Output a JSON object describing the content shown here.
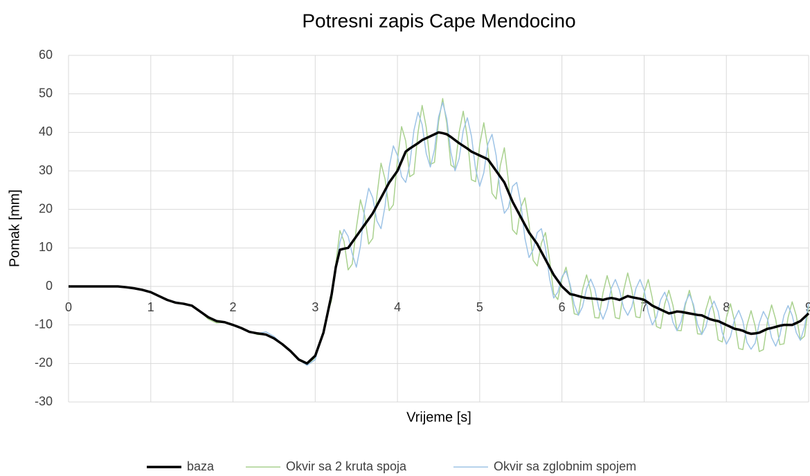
{
  "chart_data": {
    "type": "line",
    "title": "Potresni zapis Cape Mendocino",
    "xlabel": "Vrijeme [s]",
    "ylabel": "Pomak [mm]",
    "xlim": [
      0,
      9
    ],
    "ylim": [
      -30,
      60
    ],
    "xticks": [
      0,
      1,
      2,
      3,
      4,
      5,
      6,
      7,
      8,
      9
    ],
    "yticks": [
      -30,
      -20,
      -10,
      0,
      10,
      20,
      30,
      40,
      50,
      60
    ],
    "grid": true,
    "legend": "bottom",
    "x": [
      0,
      0.1,
      0.2,
      0.3,
      0.4,
      0.5,
      0.6,
      0.7,
      0.8,
      0.9,
      1,
      1.1,
      1.2,
      1.3,
      1.4,
      1.5,
      1.6,
      1.7,
      1.8,
      1.9,
      2,
      2.1,
      2.2,
      2.3,
      2.4,
      2.5,
      2.6,
      2.7,
      2.8,
      2.9,
      3,
      3.05,
      3.1,
      3.15,
      3.2,
      3.25,
      3.3,
      3.35,
      3.4,
      3.45,
      3.5,
      3.55,
      3.6,
      3.65,
      3.7,
      3.75,
      3.8,
      3.85,
      3.9,
      3.95,
      4,
      4.05,
      4.1,
      4.15,
      4.2,
      4.25,
      4.3,
      4.35,
      4.4,
      4.45,
      4.5,
      4.55,
      4.6,
      4.65,
      4.7,
      4.75,
      4.8,
      4.85,
      4.9,
      4.95,
      5,
      5.05,
      5.1,
      5.15,
      5.2,
      5.25,
      5.3,
      5.35,
      5.4,
      5.45,
      5.5,
      5.55,
      5.6,
      5.65,
      5.7,
      5.75,
      5.8,
      5.85,
      5.9,
      5.95,
      6,
      6.05,
      6.1,
      6.15,
      6.2,
      6.25,
      6.3,
      6.35,
      6.4,
      6.45,
      6.5,
      6.55,
      6.6,
      6.65,
      6.7,
      6.75,
      6.8,
      6.85,
      6.9,
      6.95,
      7,
      7.05,
      7.1,
      7.15,
      7.2,
      7.25,
      7.3,
      7.35,
      7.4,
      7.45,
      7.5,
      7.55,
      7.6,
      7.65,
      7.7,
      7.75,
      7.8,
      7.85,
      7.9,
      7.95,
      8,
      8.05,
      8.1,
      8.15,
      8.2,
      8.25,
      8.3,
      8.35,
      8.4,
      8.45,
      8.5,
      8.55,
      8.6,
      8.65,
      8.7,
      8.75,
      8.8,
      8.85,
      8.9,
      8.95,
      9
    ],
    "series": [
      {
        "name": "Okvir sa 2 kruta spoja",
        "color": "#a9d18e",
        "width": 1.5,
        "values": [
          0,
          0,
          0,
          0,
          0,
          0,
          0,
          -0.2,
          -0.5,
          -0.9,
          -1.5,
          -2.5,
          -3.5,
          -4.2,
          -4.5,
          -5,
          -6.5,
          -8.5,
          -9.5,
          -9.3,
          -10,
          -10.8,
          -11.8,
          -12.5,
          -12.5,
          -13.5,
          -15,
          -16.8,
          -19,
          -20.3,
          -18.5,
          -15,
          -12,
          -7,
          -3.6,
          5.9,
          14.5,
          11.7,
          4.3,
          5.8,
          15.2,
          22.5,
          18.5,
          11,
          12.5,
          23.5,
          32,
          27.8,
          19.7,
          21.2,
          32.8,
          41.5,
          37.8,
          28.5,
          29.2,
          40,
          47,
          41.3,
          31.7,
          32.2,
          42.8,
          48.8,
          42.3,
          31.5,
          30.7,
          40,
          45.5,
          38.6,
          27.7,
          27.2,
          36.8,
          42.5,
          35.8,
          24.2,
          22.7,
          31.3,
          36,
          27.3,
          14.7,
          13.5,
          20.5,
          23,
          16.2,
          6.8,
          5.3,
          11.2,
          14,
          6.9,
          -1.9,
          -3.4,
          1.9,
          5,
          -0.1,
          -7.1,
          -7.4,
          -0.9,
          3,
          -1.2,
          -8.1,
          -8.2,
          -1.6,
          2.8,
          -1.1,
          -8.1,
          -8.4,
          -1.1,
          3.5,
          -0.9,
          -7.9,
          -8.1,
          -1.6,
          1.8,
          -3.1,
          -10.4,
          -10.9,
          -4.6,
          -1,
          -4.9,
          -11.4,
          -11.5,
          -4.9,
          -1,
          -5.3,
          -12.3,
          -12.4,
          -6.1,
          -2.5,
          -6.9,
          -13.9,
          -14.4,
          -8.1,
          -4.5,
          -9.1,
          -16.1,
          -16.4,
          -10.1,
          -6.3,
          -10.3,
          -16.9,
          -16.4,
          -9.1,
          -4.8,
          -8.6,
          -15.1,
          -14.9,
          -8.1,
          -4,
          -7.6,
          -13.9,
          -12.9,
          -5.1
        ]
      },
      {
        "name": "Okvir sa zglobnim spojem",
        "color": "#9dc3e6",
        "width": 1.5,
        "values": [
          0,
          0,
          0,
          0,
          0,
          0,
          0,
          -0.2,
          -0.5,
          -0.9,
          -1.5,
          -2.5,
          -3.5,
          -4,
          -4.5,
          -5,
          -6.5,
          -8,
          -8.8,
          -9.3,
          -10,
          -10.8,
          -11.8,
          -12.2,
          -11.8,
          -13,
          -15,
          -16.8,
          -19,
          -20.5,
          -19,
          -15,
          -12,
          -7,
          -3,
          4,
          11.5,
          14.8,
          13,
          8.5,
          5,
          10.5,
          20,
          25.5,
          23,
          17,
          15,
          21,
          31,
          36.5,
          34,
          28.5,
          27,
          31.8,
          40.5,
          45.2,
          42,
          34.5,
          31,
          35.5,
          44,
          47.8,
          43.5,
          34.8,
          30,
          33.2,
          40.5,
          43.8,
          39,
          30.5,
          26,
          29.5,
          37,
          39.5,
          34,
          24.5,
          19,
          20.5,
          26,
          27,
          21.5,
          12.5,
          7.5,
          9.5,
          14,
          15,
          10,
          2,
          -3,
          -1.5,
          2.5,
          4,
          0.5,
          -4.7,
          -7.5,
          -5.3,
          -0.5,
          1.9,
          -0.7,
          -5.8,
          -8.5,
          -5.7,
          -0.5,
          1.8,
          -1,
          -5.5,
          -7.5,
          -5.3,
          -0.5,
          1.8,
          -1,
          -6.7,
          -10,
          -8,
          -3.5,
          -1.5,
          -4.5,
          -9.3,
          -11.5,
          -9.1,
          -4.3,
          -2,
          -4.7,
          -9.9,
          -12.5,
          -10.5,
          -6,
          -3.8,
          -6.5,
          -12,
          -15,
          -13,
          -8.5,
          -6.2,
          -9,
          -14.5,
          -16.3,
          -14.7,
          -9.5,
          -6.5,
          -8.5,
          -13.3,
          -15.5,
          -12.7,
          -7.5,
          -5,
          -7.5,
          -12,
          -14,
          -10.5,
          -4.5
        ]
      },
      {
        "name": "baza",
        "color": "#000000",
        "width": 3.5,
        "values": [
          0,
          0,
          0,
          0,
          0,
          0,
          0,
          -0.2,
          -0.5,
          -0.9,
          -1.5,
          -2.5,
          -3.5,
          -4.2,
          -4.5,
          -5,
          -6.5,
          -8,
          -9,
          -9.3,
          -10,
          -10.8,
          -11.8,
          -12.2,
          -12.5,
          -13.5,
          -15,
          -16.8,
          -19,
          -20,
          -18,
          -15,
          -12,
          -7,
          -2,
          5,
          9.5,
          9.8,
          10,
          11.5,
          13,
          14.5,
          16,
          17.5,
          19,
          21,
          23,
          25,
          27,
          28.5,
          30,
          32.5,
          35,
          35.8,
          36.5,
          37.2,
          38,
          38.5,
          39,
          39.5,
          40,
          39.8,
          39.5,
          38.8,
          38,
          37.2,
          36.5,
          35.8,
          35,
          34.5,
          34,
          33.5,
          33,
          31.5,
          30,
          28.5,
          27,
          24.5,
          22,
          20,
          18,
          16,
          14,
          12.5,
          11,
          9,
          7,
          5,
          3,
          1.5,
          0,
          -1,
          -2,
          -2.2,
          -2.5,
          -2.8,
          -3,
          -3.1,
          -3.2,
          -3.3,
          -3.5,
          -3.2,
          -3,
          -3.2,
          -3.5,
          -3,
          -2.5,
          -2.8,
          -3,
          -3.2,
          -3.5,
          -4.2,
          -5,
          -5.5,
          -6,
          -6.5,
          -7,
          -6.8,
          -6.5,
          -6.6,
          -6.8,
          -7,
          -7.2,
          -7.4,
          -7.5,
          -8,
          -8.5,
          -8.8,
          -9,
          -9.5,
          -10,
          -10.5,
          -11,
          -11.2,
          -11.5,
          -12,
          -12.3,
          -12.2,
          -12,
          -11.5,
          -11,
          -10.8,
          -10.5,
          -10.2,
          -10,
          -10,
          -10,
          -9.5,
          -9,
          -8,
          -7
        ]
      }
    ],
    "legend_order": [
      2,
      0,
      1
    ]
  }
}
